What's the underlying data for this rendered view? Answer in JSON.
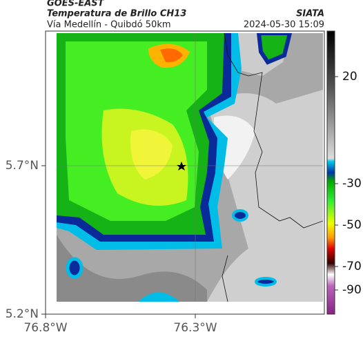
{
  "header": {
    "source": "GOES-EAST",
    "product": "Temperatura de Brillo CH13",
    "route": "Vía Medellín - Quibdó 50km",
    "agency": "SIATA",
    "timestamp": "2024-05-30 15:09"
  },
  "map": {
    "lat_ticks": [
      "5.7°N",
      "5.2°N"
    ],
    "lon_ticks": [
      "76.8°W",
      "76.3°W"
    ],
    "colorbar": {
      "ticks": [
        20,
        -30,
        -50,
        -70,
        -90
      ]
    }
  }
}
